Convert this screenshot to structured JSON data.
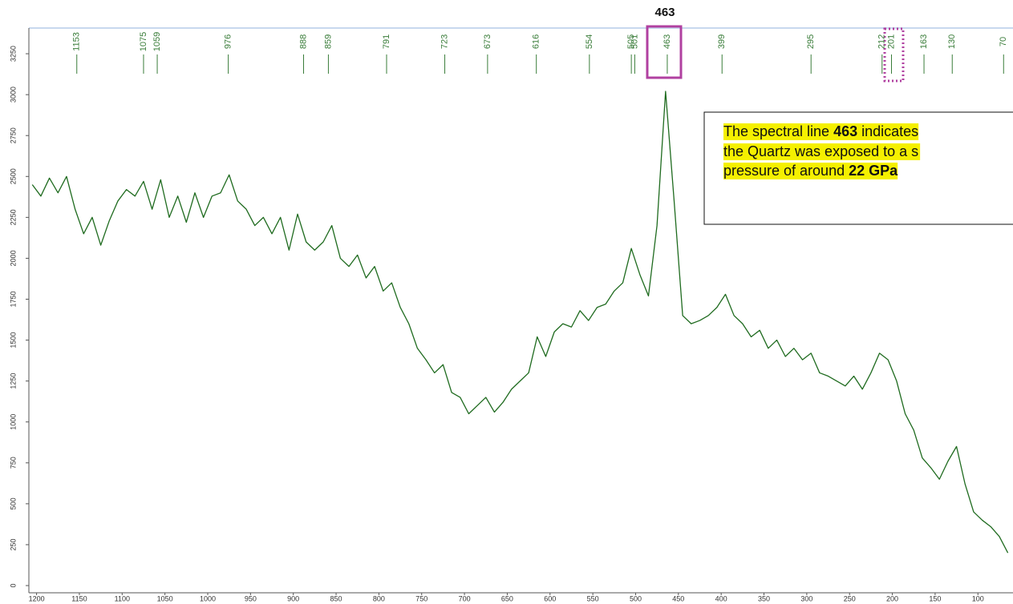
{
  "chart_data": {
    "type": "line",
    "x": [
      1205,
      1195,
      1185,
      1175,
      1165,
      1155,
      1145,
      1135,
      1125,
      1115,
      1105,
      1095,
      1085,
      1075,
      1065,
      1055,
      1045,
      1035,
      1025,
      1015,
      1005,
      995,
      985,
      975,
      965,
      955,
      945,
      935,
      925,
      915,
      905,
      895,
      885,
      875,
      865,
      855,
      845,
      835,
      825,
      815,
      805,
      795,
      785,
      775,
      765,
      755,
      745,
      735,
      725,
      715,
      705,
      695,
      685,
      675,
      665,
      655,
      645,
      635,
      625,
      615,
      605,
      595,
      585,
      575,
      565,
      555,
      545,
      535,
      525,
      515,
      505,
      495,
      485,
      475,
      465,
      455,
      445,
      435,
      425,
      415,
      405,
      395,
      385,
      375,
      365,
      355,
      345,
      335,
      325,
      315,
      305,
      295,
      285,
      275,
      265,
      255,
      245,
      235,
      225,
      215,
      205,
      195,
      185,
      175,
      165,
      155,
      145,
      135,
      125,
      115,
      105,
      95,
      85,
      75,
      65
    ],
    "values": [
      2450,
      2380,
      2490,
      2400,
      2500,
      2300,
      2150,
      2250,
      2080,
      2230,
      2350,
      2420,
      2380,
      2470,
      2300,
      2480,
      2250,
      2380,
      2220,
      2400,
      2250,
      2380,
      2400,
      2510,
      2350,
      2300,
      2200,
      2250,
      2150,
      2250,
      2050,
      2270,
      2100,
      2050,
      2100,
      2200,
      2000,
      1950,
      2020,
      1880,
      1950,
      1800,
      1850,
      1700,
      1600,
      1450,
      1380,
      1300,
      1350,
      1180,
      1150,
      1050,
      1100,
      1150,
      1060,
      1120,
      1200,
      1250,
      1300,
      1520,
      1400,
      1550,
      1600,
      1580,
      1680,
      1620,
      1700,
      1720,
      1800,
      1850,
      2060,
      1900,
      1770,
      2200,
      3020,
      2350,
      1650,
      1600,
      1620,
      1650,
      1700,
      1780,
      1650,
      1600,
      1520,
      1560,
      1450,
      1500,
      1400,
      1450,
      1380,
      1420,
      1300,
      1280,
      1250,
      1220,
      1280,
      1200,
      1300,
      1420,
      1380,
      1250,
      1050,
      950,
      780,
      720,
      650,
      760,
      850,
      620,
      450,
      400,
      360,
      300,
      200
    ],
    "color": "#1f6b1f",
    "xlim": [
      1209,
      59
    ],
    "ylim": [
      -44,
      3407
    ],
    "xticks": [
      1200,
      1150,
      1100,
      1050,
      1000,
      950,
      900,
      850,
      800,
      750,
      700,
      650,
      600,
      550,
      500,
      450,
      400,
      350,
      300,
      250,
      200,
      150,
      100
    ],
    "yticks": [
      0,
      250,
      500,
      750,
      1000,
      1250,
      1500,
      1750,
      2000,
      2250,
      2500,
      2750,
      3000,
      3250
    ],
    "peak_labels": [
      1153,
      1075,
      1059,
      976,
      888,
      859,
      791,
      723,
      673,
      616,
      554,
      505,
      501,
      463,
      399,
      295,
      212,
      201,
      163,
      130,
      70
    ],
    "peak_color": "#3a7d3a",
    "highlight_label": "463",
    "text_box": [
      [
        "The spectral line",
        {
          "b": "463"
        },
        "indicates"
      ],
      [
        "the Quartz was exposed to a s"
      ],
      [
        "pressure of around",
        {
          "b": "22"
        },
        {
          "b": "GPa"
        }
      ]
    ]
  }
}
